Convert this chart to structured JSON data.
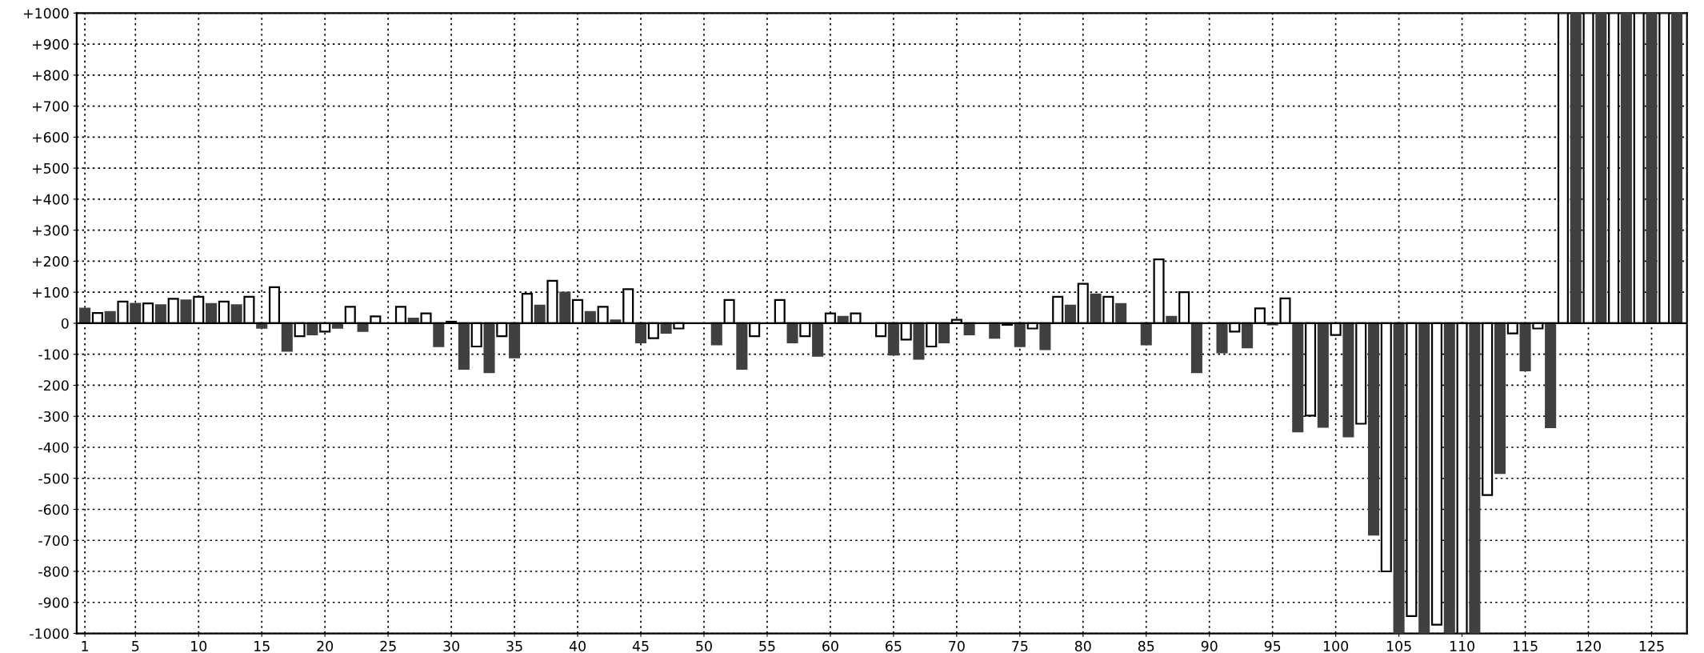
{
  "chart_data": {
    "type": "bar",
    "series": [
      {
        "color": "#404040",
        "x": [
          1,
          3,
          5,
          7,
          9,
          11,
          13,
          15,
          17,
          19,
          21,
          23,
          25,
          27,
          29,
          31,
          33,
          35,
          37,
          39,
          41,
          43,
          45,
          47,
          49,
          51,
          53,
          55,
          57,
          59,
          61,
          63,
          65,
          67,
          69,
          71,
          73,
          75,
          77,
          79,
          81,
          83,
          85,
          87,
          89,
          91,
          93,
          95,
          97,
          99,
          101,
          103,
          105,
          107,
          109,
          111,
          113,
          115,
          117,
          119,
          121,
          123,
          125,
          127
        ],
        "values": [
          47,
          36,
          63,
          58,
          74,
          62,
          58,
          -15,
          -89,
          -36,
          -15,
          -25,
          0,
          15,
          -74,
          -147,
          -158,
          -110,
          57,
          99,
          36,
          9,
          -62,
          -31,
          0,
          -68,
          -147,
          0,
          -62,
          -105,
          21,
          0,
          -101,
          -115,
          -62,
          -36,
          -47,
          -74,
          -84,
          57,
          93,
          62,
          -68,
          21,
          -158,
          -94,
          -78,
          -4,
          -349,
          -334,
          -365,
          -682,
          -1000,
          -1000,
          -1000,
          -1000,
          -483,
          -152,
          -335,
          1000,
          1000,
          1000,
          1000,
          1000
        ]
      },
      {
        "color": "#ffffff",
        "x": [
          2,
          4,
          6,
          8,
          10,
          12,
          14,
          16,
          18,
          20,
          22,
          24,
          26,
          28,
          30,
          32,
          34,
          36,
          38,
          40,
          42,
          44,
          46,
          48,
          50,
          52,
          54,
          56,
          58,
          60,
          62,
          64,
          66,
          68,
          70,
          72,
          74,
          76,
          78,
          80,
          82,
          84,
          86,
          88,
          90,
          92,
          94,
          96,
          98,
          100,
          102,
          104,
          106,
          108,
          110,
          112,
          114,
          116,
          118,
          120,
          122,
          124,
          126
        ],
        "values": [
          33,
          70,
          64,
          79,
          85,
          70,
          85,
          116,
          -42,
          -27,
          53,
          22,
          53,
          32,
          5,
          -75,
          -42,
          95,
          137,
          75,
          53,
          110,
          -48,
          -17,
          0,
          75,
          -42,
          75,
          -42,
          32,
          32,
          -42,
          -53,
          -75,
          11,
          0,
          -5,
          -17,
          85,
          127,
          85,
          0,
          206,
          100,
          0,
          -27,
          48,
          80,
          -298,
          -38,
          -324,
          -800,
          -944,
          -972,
          -1000,
          -554,
          -33,
          -17,
          1000,
          1000,
          1000,
          1000,
          1000
        ]
      }
    ],
    "xlim": [
      0.35,
      127.8
    ],
    "xticks": [
      1,
      5,
      10,
      15,
      20,
      25,
      30,
      35,
      40,
      45,
      50,
      55,
      60,
      65,
      70,
      75,
      80,
      85,
      90,
      95,
      100,
      105,
      110,
      115,
      120,
      125
    ],
    "ylim": [
      -1000,
      1000
    ],
    "yticks": [
      -1000,
      -900,
      -800,
      -700,
      -600,
      -500,
      -400,
      -300,
      -200,
      -100,
      0,
      {
        "value": 100,
        "label": "+100"
      },
      {
        "value": 200,
        "label": "+200"
      },
      {
        "value": 300,
        "label": "+300"
      },
      {
        "value": 400,
        "label": "+400"
      },
      {
        "value": 500,
        "label": "+500"
      },
      {
        "value": 600,
        "label": "+600"
      },
      {
        "value": 700,
        "label": "+700"
      },
      {
        "value": 800,
        "label": "+800"
      },
      {
        "value": 900,
        "label": "+900"
      },
      {
        "value": 1000,
        "label": "+1000"
      }
    ],
    "ref_lines": [
      {
        "axis": "y",
        "value": 0,
        "color": "#000000"
      }
    ],
    "grid": true,
    "legend": false
  }
}
